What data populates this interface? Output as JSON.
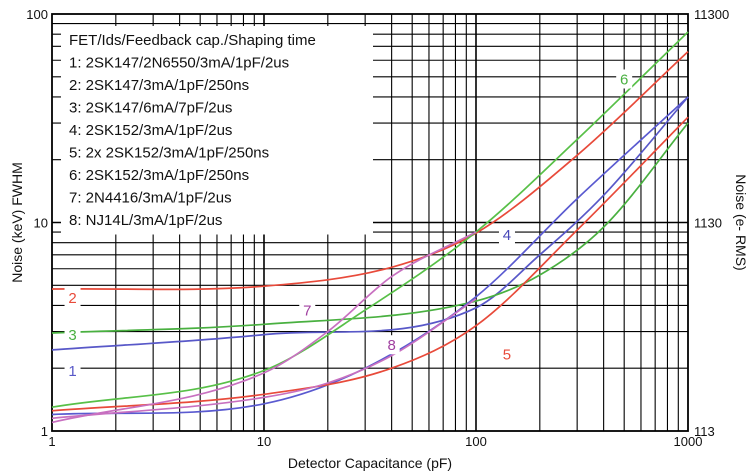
{
  "chart_data": {
    "type": "line",
    "title": "",
    "xlabel": "Detector Capacitance (pF)",
    "ylabel": "Noise (keV) FWHM",
    "y2label": "Noise (e- RMS)",
    "xscale": "log",
    "yscale": "log",
    "xlim": [
      1,
      1000
    ],
    "ylim": [
      1,
      100
    ],
    "grid": true,
    "x_ticks": [
      "1",
      "10",
      "100",
      "1000"
    ],
    "y_ticks": [
      "1",
      "10",
      "100"
    ],
    "y2_ticks": [
      "113",
      "1130",
      "11300"
    ],
    "legend": {
      "position": "top-left",
      "header": "FET/Ids/Feedback cap./Shaping time",
      "entries": [
        "1: 2SK147/2N6550/3mA/1pF/2us",
        "2: 2SK147/3mA/1pF/250ns",
        "3: 2SK147/6mA/7pF/2us",
        "4: 2SK152/3mA/1pF/2us",
        "5: 2x 2SK152/3mA/1pF/250ns",
        "6: 2SK152/3mA/1pF/250ns",
        "7: 2N4416/3mA/1pF/2us",
        "8: NJ14L/3mA/1pF/2us"
      ]
    },
    "series": [
      {
        "name": "1",
        "color": "#5858c8",
        "x": [
          1,
          10,
          100,
          200,
          400,
          1000
        ],
        "y": [
          2.45,
          2.9,
          3.9,
          7.0,
          13.5,
          40
        ]
      },
      {
        "name": "2",
        "color": "#e84a3a",
        "x": [
          1,
          10,
          40,
          100,
          300,
          1000
        ],
        "y": [
          4.8,
          4.95,
          6.1,
          8.9,
          21,
          66
        ]
      },
      {
        "name": "3",
        "color": "#49b040",
        "x": [
          1,
          10,
          100,
          200,
          400,
          1000
        ],
        "y": [
          2.95,
          3.25,
          4.2,
          5.6,
          9.5,
          30
        ]
      },
      {
        "name": "4",
        "color": "#5a5ad0",
        "x": [
          1,
          10,
          30,
          100,
          300,
          1000
        ],
        "y": [
          1.2,
          1.35,
          2.0,
          4.4,
          13,
          40
        ]
      },
      {
        "name": "5",
        "color": "#e84a3a",
        "x": [
          1,
          10,
          40,
          100,
          300,
          1000
        ],
        "y": [
          1.25,
          1.5,
          2.0,
          3.2,
          9.2,
          32
        ]
      },
      {
        "name": "6",
        "color": "#58c048",
        "x": [
          1,
          10,
          30,
          100,
          300,
          1000
        ],
        "y": [
          1.3,
          1.95,
          3.8,
          9.0,
          25,
          82
        ]
      },
      {
        "name": "7",
        "color": "#c870c0",
        "x": [
          1,
          10,
          20,
          40,
          100
        ],
        "y": [
          1.1,
          1.9,
          3.0,
          5.5,
          9.0
        ]
      },
      {
        "name": "8",
        "color": "#c870c0",
        "x": [
          1,
          10,
          20,
          40,
          100
        ],
        "y": [
          1.15,
          1.45,
          1.7,
          2.3,
          4.3
        ]
      }
    ],
    "series_labels": [
      {
        "text": "1",
        "color": "#5858c8",
        "x": 1.25,
        "y": 1.92
      },
      {
        "text": "2",
        "color": "#e84a3a",
        "x": 1.25,
        "y": 4.3
      },
      {
        "text": "3",
        "color": "#49b040",
        "x": 1.25,
        "y": 2.85
      },
      {
        "text": "4",
        "color": "#4848b8",
        "x": 140,
        "y": 8.6
      },
      {
        "text": "5",
        "color": "#e84a3a",
        "x": 140,
        "y": 2.3
      },
      {
        "text": "6",
        "color": "#49b040",
        "x": 500,
        "y": 48
      },
      {
        "text": "7",
        "color": "#a040a0",
        "x": 16,
        "y": 3.75
      },
      {
        "text": "8",
        "color": "#a040a0",
        "x": 40,
        "y": 2.55
      }
    ]
  }
}
